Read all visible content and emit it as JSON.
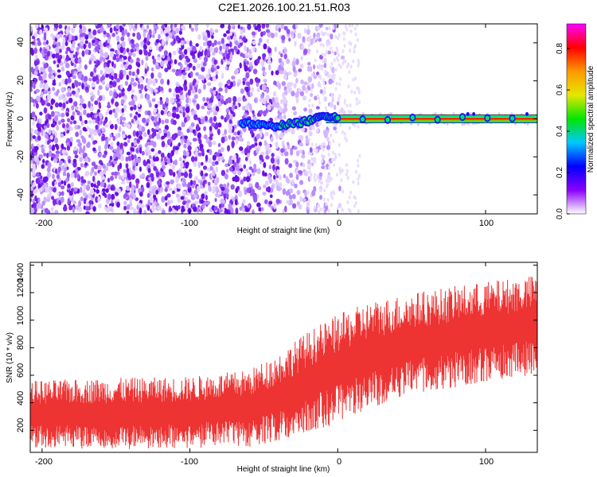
{
  "figure": {
    "title": "C2E1.2026.100.21.51.R03"
  },
  "chart_data": [
    {
      "type": "heatmap",
      "title": "C2E1.2026.100.21.51.R03",
      "xlabel": "Height of straight line (km)",
      "ylabel": "Frequency (Hz)",
      "xlim": [
        -208,
        135
      ],
      "ylim": [
        -50,
        50
      ],
      "x_ticks": [
        -200,
        -100,
        0,
        100
      ],
      "x_tick_labels": [
        "-200",
        "-100",
        "0",
        "100"
      ],
      "y_ticks": [
        -40,
        -20,
        0,
        20,
        40
      ],
      "y_tick_labels": [
        "-40",
        "-20",
        "0",
        "20",
        "40"
      ],
      "colorbar": {
        "label": "Normalized spectral amplitude",
        "range": [
          0.0,
          0.92
        ],
        "ticks": [
          0.0,
          0.2,
          0.4,
          0.6,
          0.8
        ],
        "tick_labels": [
          "0.0",
          "0.2",
          "0.4",
          "0.6",
          "0.8"
        ],
        "colormap": [
          "#ffffff",
          "#8a00ff",
          "#0000ff",
          "#00c8ff",
          "#00e600",
          "#e6e600",
          "#ff9900",
          "#ff0000",
          "#ff00ff"
        ]
      },
      "features": {
        "noise_region_x": [
          -208,
          5
        ],
        "faint_noise_x": [
          -20,
          15
        ],
        "signal_track": [
          {
            "x": -65,
            "y": -2
          },
          {
            "x": -55,
            "y": -3
          },
          {
            "x": -45,
            "y": -4
          },
          {
            "x": -35,
            "y": -3
          },
          {
            "x": -25,
            "y": -2
          },
          {
            "x": -15,
            "y": 0
          },
          {
            "x": -8,
            "y": 2
          },
          {
            "x": 0,
            "y": 0.5
          },
          {
            "x": 135,
            "y": 0
          }
        ],
        "steady_line": {
          "x_start": -8,
          "x_end": 135,
          "y": 0,
          "amplitude": 0.9
        }
      }
    },
    {
      "type": "line",
      "xlabel": "Height of straight line (km)",
      "ylabel": "SNR (10 * v/v)",
      "xlim": [
        -208,
        135
      ],
      "ylim": [
        40,
        1420
      ],
      "x_ticks": [
        -200,
        -100,
        0,
        100
      ],
      "x_tick_labels": [
        "-200",
        "-100",
        "0",
        "100"
      ],
      "y_ticks": [
        200,
        400,
        600,
        800,
        1000,
        1200,
        1400
      ],
      "y_tick_labels": [
        "200",
        "400",
        "600",
        "800",
        "1000",
        "1200",
        "1400"
      ],
      "series": [
        {
          "name": "SNR",
          "color": "#ee3333",
          "envelope_x": [
            -208,
            -150,
            -100,
            -60,
            -40,
            -20,
            0,
            20,
            50,
            100,
            135
          ],
          "envelope_low": [
            60,
            60,
            70,
            80,
            110,
            180,
            250,
            350,
            450,
            550,
            600
          ],
          "envelope_high": [
            560,
            580,
            590,
            640,
            760,
            920,
            1040,
            1130,
            1200,
            1280,
            1330
          ]
        }
      ]
    }
  ]
}
